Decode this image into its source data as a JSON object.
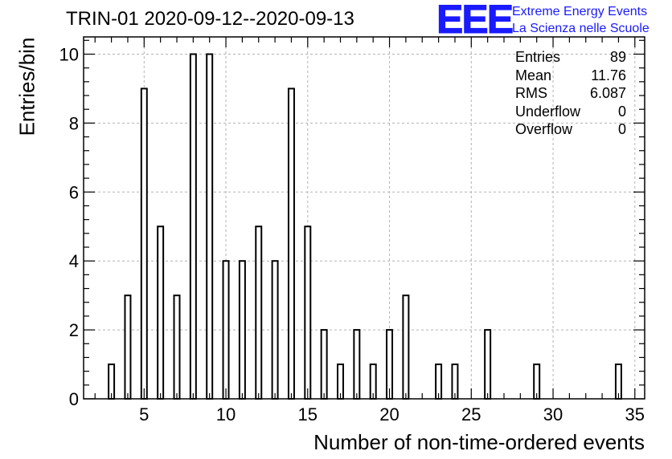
{
  "title": "TRIN-01 2020-09-12--2020-09-13",
  "logo": {
    "mark": "EEE",
    "line1": "Extreme Energy Events",
    "line2": "La Scienza nelle Scuole"
  },
  "stats": [
    {
      "label": "Entries",
      "value": "89"
    },
    {
      "label": "Mean",
      "value": "11.76"
    },
    {
      "label": "RMS",
      "value": "6.087"
    },
    {
      "label": "Underflow",
      "value": "0"
    },
    {
      "label": "Overflow",
      "value": "0"
    }
  ],
  "colors": {
    "logo": "#1a1aff",
    "axis": "#000000",
    "grid": "#b3b3b3"
  },
  "chart_data": {
    "type": "bar",
    "xlabel": "Number of non-time-ordered events",
    "ylabel": "Entries/bin",
    "xlim": [
      1.3,
      35.6
    ],
    "ylim": [
      0,
      10.5
    ],
    "bin_width": 0.343,
    "bins": [
      {
        "x": 3,
        "y": 1
      },
      {
        "x": 4,
        "y": 3
      },
      {
        "x": 5,
        "y": 9
      },
      {
        "x": 6,
        "y": 5
      },
      {
        "x": 7,
        "y": 3
      },
      {
        "x": 8,
        "y": 10
      },
      {
        "x": 9,
        "y": 10
      },
      {
        "x": 10,
        "y": 4
      },
      {
        "x": 11,
        "y": 4
      },
      {
        "x": 12,
        "y": 5
      },
      {
        "x": 13,
        "y": 4
      },
      {
        "x": 14,
        "y": 9
      },
      {
        "x": 15,
        "y": 5
      },
      {
        "x": 16,
        "y": 2
      },
      {
        "x": 17,
        "y": 1
      },
      {
        "x": 18,
        "y": 2
      },
      {
        "x": 19,
        "y": 1
      },
      {
        "x": 20,
        "y": 2
      },
      {
        "x": 21,
        "y": 3
      },
      {
        "x": 23,
        "y": 1
      },
      {
        "x": 24,
        "y": 1
      },
      {
        "x": 26,
        "y": 2
      },
      {
        "x": 29,
        "y": 1
      },
      {
        "x": 34,
        "y": 1
      }
    ],
    "x_ticks": [
      "5",
      "10",
      "15",
      "20",
      "25",
      "30",
      "35"
    ],
    "y_ticks": [
      "0",
      "2",
      "4",
      "6",
      "8",
      "10"
    ],
    "grid": true,
    "legend": "top-right stats box"
  }
}
